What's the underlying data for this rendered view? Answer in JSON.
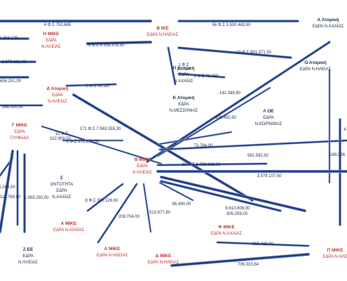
{
  "nodes": [
    {
      "id": "h-mike",
      "lines": [
        "Η ΜΙΚΕ",
        "ΕΔΡΑ",
        "Ν.ΗΛΕΙΑΣ"
      ],
      "color": "#c0302a"
    },
    {
      "id": "v-ike",
      "lines": [
        "Β ΙΚΕ",
        "ΕΔΡΑ Ν.ΗΛΕΙΑΣ"
      ],
      "color": "#c0302a"
    },
    {
      "id": "a-atomiki",
      "lines": [
        "Α Ατομική",
        "ΕΔΡΑ Ν.ΑΧΑΪΑΣ"
      ],
      "color": "#1a2a4a"
    },
    {
      "id": "d-atomiki",
      "lines": [
        "Δ Ατομική",
        "ΕΔΡΑ",
        "Ν.ΗΛΕΙΑΣ"
      ],
      "color": "#c0302a"
    },
    {
      "id": "p-atomiki",
      "lines": [
        "Π Ατομική",
        "ΕΔΡΑ",
        "Ν.ΑΧΑΪΑΣ"
      ],
      "color": "#1a2a4a"
    },
    {
      "id": "o-atomiki",
      "lines": [
        "Ο Ατομική",
        "ΕΔΡΑ Ν.ΗΛΕΙΑΣ"
      ],
      "color": "#1a2a4a"
    },
    {
      "id": "k-atomiki",
      "lines": [
        "Κ Ατομική",
        "ΕΔΡΑ",
        "Ν.ΜΕΣΣΗΝΙΑΣ"
      ],
      "color": "#1a2a4a"
    },
    {
      "id": "l-oe",
      "lines": [
        "Λ ΟΕ",
        "ΕΔΡΑ",
        "Ν.ΚΟΡΙΝΘΙΑΣ"
      ],
      "color": "#1a2a4a"
    },
    {
      "id": "g-mike",
      "lines": [
        "Γ ΜΙΚΕ",
        "ΕΔΡΑ",
        "ΓΛΥΦΑΔΑ"
      ],
      "color": "#c0302a"
    },
    {
      "id": "th-mike",
      "lines": [
        "Θ ΜΙΚΕ",
        "ΕΔΡΑ",
        "Ν.ΗΛΕΙΑΣ"
      ],
      "color": "#c0302a"
    },
    {
      "id": "s-ontotita",
      "lines": [
        "Σ",
        "ΟΝΤΟΤΗΤΑ",
        "ΕΔΡΑ",
        "Ν.ΑΧΑΪΑΣ"
      ],
      "color": "#1a2a4a"
    },
    {
      "id": "x-mike",
      "lines": [
        "Χ ΜΙΚΕ",
        "ΕΔΡΑ Ν.ΑΧΑΪΑΣ"
      ],
      "color": "#c0302a"
    },
    {
      "id": "f-mike",
      "lines": [
        "Φ ΜΙΚΕ",
        "ΕΔΡΑ Ν.ΑΧΑΪΑΣ"
      ],
      "color": "#c0302a"
    },
    {
      "id": "z-ee",
      "lines": [
        "Ζ ΕΕ",
        "ΕΔΡΑ",
        "Ν.ΗΛΕΙΑΣ"
      ],
      "color": "#1a2a4a"
    },
    {
      "id": "a-mike",
      "lines": [
        "Α ΜΙΚΕ",
        "ΕΔΡΑ Ν.ΗΛΕΙΑΣ"
      ],
      "color": "#c0302a"
    },
    {
      "id": "delta-mike",
      "lines": [
        "Δ ΜΙΚΕ",
        "ΕΔΡΑ Ν.ΗΛΕΙΑΣ"
      ],
      "color": "#c0302a"
    },
    {
      "id": "pi-mike",
      "lines": [
        "Π ΜΙΚΕ",
        "ΕΔΡΑ Ν.ΗΛΕ"
      ],
      "color": "#c0302a"
    }
  ],
  "edge_labels": [
    "4 Φ.Σ 753.665",
    "56 Φ.Σ 3.530.483,50",
    "5.383.175",
    "79 Φ.Σ 4.338.376,50",
    "19 Φ.Σ 801.371,50",
    "2.275.281,00",
    "1 Φ.Σ",
    "20.709",
    "3 Φ.Σ 73.468",
    "658.251,00",
    "2 Φ.Σ 45.287",
    "142.388,80",
    "346.000,00",
    "638.450,50",
    "171 Φ.Σ 7.563.355,30",
    "12 Φ.Σ",
    "322.909,50",
    "1 Φ.Σ 271.876,50",
    "73.784,00",
    "581.592,82",
    "199.238,",
    "23 Φ.Σ 1.769.666,00",
    "5.286,00",
    "3.579.107,50",
    "1.113.769,00",
    "1.063.250,00",
    "8 Φ.Σ 390.126,00",
    "85.490,00",
    "9.613.606,00",
    "305.259,00",
    "513.877,80",
    "209.704,00",
    "355.425,00",
    "706.315,64",
    "4"
  ]
}
